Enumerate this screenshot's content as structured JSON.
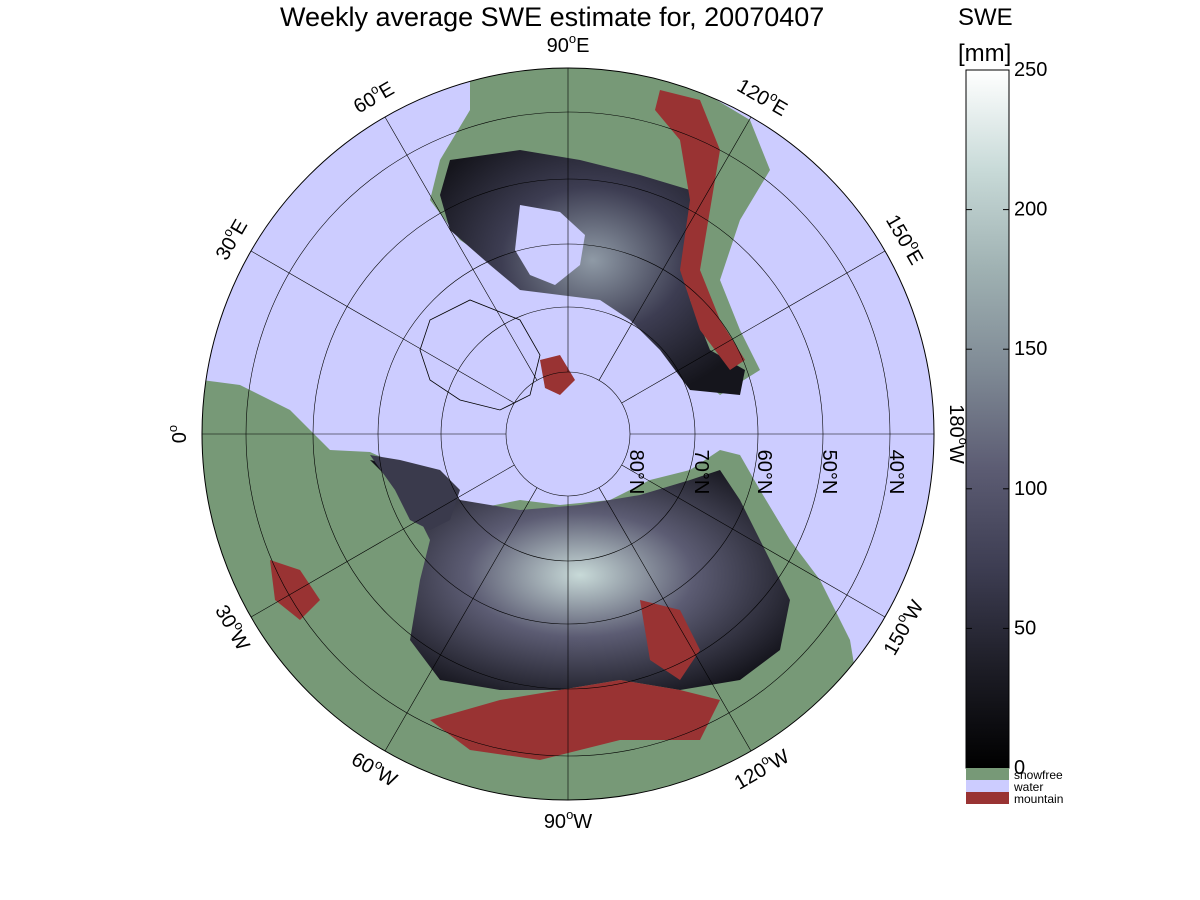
{
  "title": "Weekly average SWE estimate for, 20070407",
  "colorbar": {
    "title_line1": "SWE",
    "title_line2": "[mm]",
    "ticks": [
      "0",
      "50",
      "100",
      "150",
      "200",
      "250"
    ],
    "range": [
      0,
      250
    ],
    "categories": [
      {
        "label": "snowfree",
        "color": "#779977"
      },
      {
        "label": "water",
        "color": "#ccccff"
      },
      {
        "label": "mountain",
        "color": "#993333"
      }
    ],
    "gradient": [
      "#000000",
      "#1d1d26",
      "#3d3d52",
      "#5c5c73",
      "#7f8a95",
      "#9fb1b2",
      "#c8dad8",
      "#ffffff"
    ]
  },
  "map": {
    "projection": "north polar stereographic",
    "longitude_labels": [
      {
        "text": "90°W",
        "sup": "o",
        "base": "90",
        "suffix": "W"
      },
      {
        "text": "120°W",
        "sup": "o",
        "base": "120",
        "suffix": "W"
      },
      {
        "text": "150°W",
        "sup": "o",
        "base": "150",
        "suffix": "W"
      },
      {
        "text": "180°W",
        "sup": "o",
        "base": "180",
        "suffix": "W"
      },
      {
        "text": "150°E",
        "sup": "o",
        "base": "150",
        "suffix": "E"
      },
      {
        "text": "120°E",
        "sup": "o",
        "base": "120",
        "suffix": "E"
      },
      {
        "text": "90°E",
        "sup": "o",
        "base": "90",
        "suffix": "E"
      },
      {
        "text": "60°E",
        "sup": "o",
        "base": "60",
        "suffix": "E"
      },
      {
        "text": "30°E",
        "sup": "o",
        "base": "30",
        "suffix": "E"
      },
      {
        "text": "0°",
        "sup": "o",
        "base": "0",
        "suffix": ""
      },
      {
        "text": "30°W",
        "sup": "o",
        "base": "30",
        "suffix": "W"
      },
      {
        "text": "60°W",
        "sup": "o",
        "base": "60",
        "suffix": "W"
      }
    ],
    "latitude_labels": [
      "80°N",
      "70°N",
      "60°N",
      "50°N",
      "40°N"
    ],
    "colors": {
      "water": "#ccccff",
      "snowfree": "#779977",
      "mountain": "#993333",
      "grid": "#000000"
    }
  }
}
